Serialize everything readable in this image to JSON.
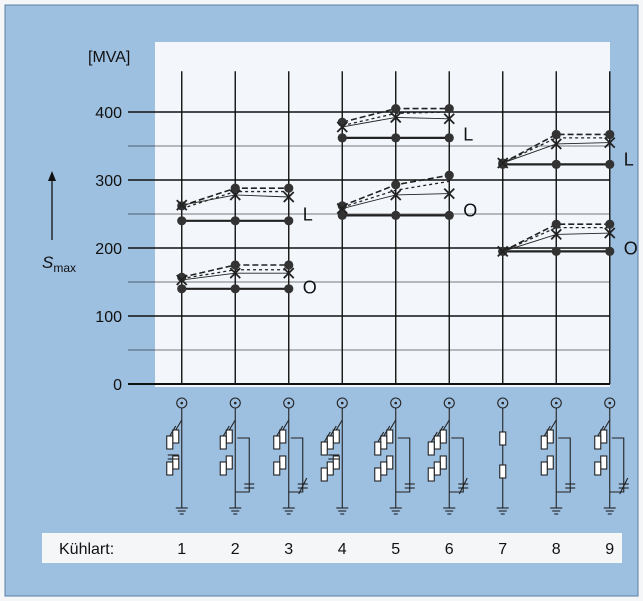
{
  "chart_data": {
    "type": "line",
    "y_unit_label": "[MVA]",
    "ylabel": "S",
    "ylabel_sub": "max",
    "yticks": [
      0,
      100,
      200,
      300,
      400
    ],
    "ylim": [
      0,
      460
    ],
    "xlabel": "Kühlart:",
    "categories": [
      "1",
      "2",
      "3",
      "4",
      "5",
      "6",
      "7",
      "8",
      "9"
    ],
    "grid": true,
    "series_labels": [
      "L",
      "O"
    ],
    "groups": [
      {
        "name": "L",
        "segments": [
          {
            "categories": [
              "1",
              "2",
              "3"
            ],
            "solid": [
              240,
              240,
              240
            ],
            "dashed_upper": [
              262,
              288,
              288
            ],
            "dashed_lower": [
              258,
              283,
              283
            ],
            "cross": [
              263,
              278,
              275
            ]
          },
          {
            "categories": [
              "4",
              "5",
              "6"
            ],
            "solid": [
              362,
              362,
              362
            ],
            "dashed_upper": [
              385,
              405,
              405
            ],
            "dashed_lower": [
              380,
              398,
              400
            ],
            "cross": [
              378,
              392,
              390
            ]
          },
          {
            "categories": [
              "7",
              "8",
              "9"
            ],
            "solid": [
              323,
              323,
              323
            ],
            "dashed_upper": [
              325,
              367,
              367
            ],
            "dashed_lower": [
              325,
              362,
              362
            ],
            "cross": [
              325,
              353,
              355
            ]
          }
        ]
      },
      {
        "name": "O",
        "segments": [
          {
            "categories": [
              "1",
              "2",
              "3"
            ],
            "solid": [
              140,
              140,
              140
            ],
            "dashed_upper": [
              157,
              175,
              175
            ],
            "dashed_lower": [
              155,
              168,
              168
            ],
            "cross": [
              153,
              163,
              163
            ]
          },
          {
            "categories": [
              "4",
              "5",
              "6"
            ],
            "solid": [
              248,
              248,
              248
            ],
            "dashed_upper": [
              262,
              293,
              307
            ],
            "dashed_lower": [
              260,
              285,
              298
            ],
            "cross": [
              258,
              278,
              280
            ]
          },
          {
            "categories": [
              "7",
              "8",
              "9"
            ],
            "solid": [
              195,
              195,
              195
            ],
            "dashed_upper": [
              195,
              235,
              235
            ],
            "dashed_lower": [
              195,
              230,
              230
            ],
            "cross": [
              195,
              220,
              222
            ]
          }
        ]
      }
    ]
  },
  "colors": {
    "background": "#9dbfe0",
    "plot_area": "#ffffff",
    "bottom_bar": "#f4f6f8",
    "line": "#222222"
  }
}
